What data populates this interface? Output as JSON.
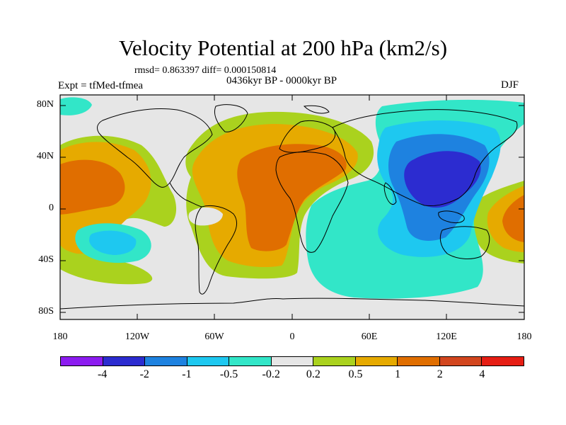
{
  "title": "Velocity Potential at 200 hPa (km2/s)",
  "stats": "rmsd= 0.863397 diff= 0.000150814",
  "period": "0436kyr BP - 0000kyr BP",
  "experiment": "Expt = tfMed-tfmea",
  "season": "DJF",
  "lat_labels": [
    "80N",
    "40N",
    "0",
    "40S",
    "80S"
  ],
  "lon_labels": [
    "180",
    "120W",
    "60W",
    "0",
    "60E",
    "120E",
    "180"
  ],
  "colorbar": {
    "colors": [
      "#8c1cf0",
      "#2c2cd0",
      "#1e82e0",
      "#1ec8f0",
      "#32e6c8",
      "#e6e6e6",
      "#aad21e",
      "#e6aa00",
      "#e06e00",
      "#d2461e",
      "#e61e14"
    ],
    "labels": [
      "-4",
      "-2",
      "-1",
      "-0.5",
      "-0.2",
      "0.2",
      "0.5",
      "1",
      "2",
      "4"
    ]
  },
  "legend": {
    "le_m0_2": "#e6e6e6",
    "level_02": "#aad21e",
    "level_05": "#e6aa00",
    "level_1": "#e06e00",
    "level_neg02": "#32e6c8",
    "level_neg05": "#1ec8f0",
    "level_neg1": "#1e82e0",
    "level_neg2": "#2c2cd0"
  }
}
